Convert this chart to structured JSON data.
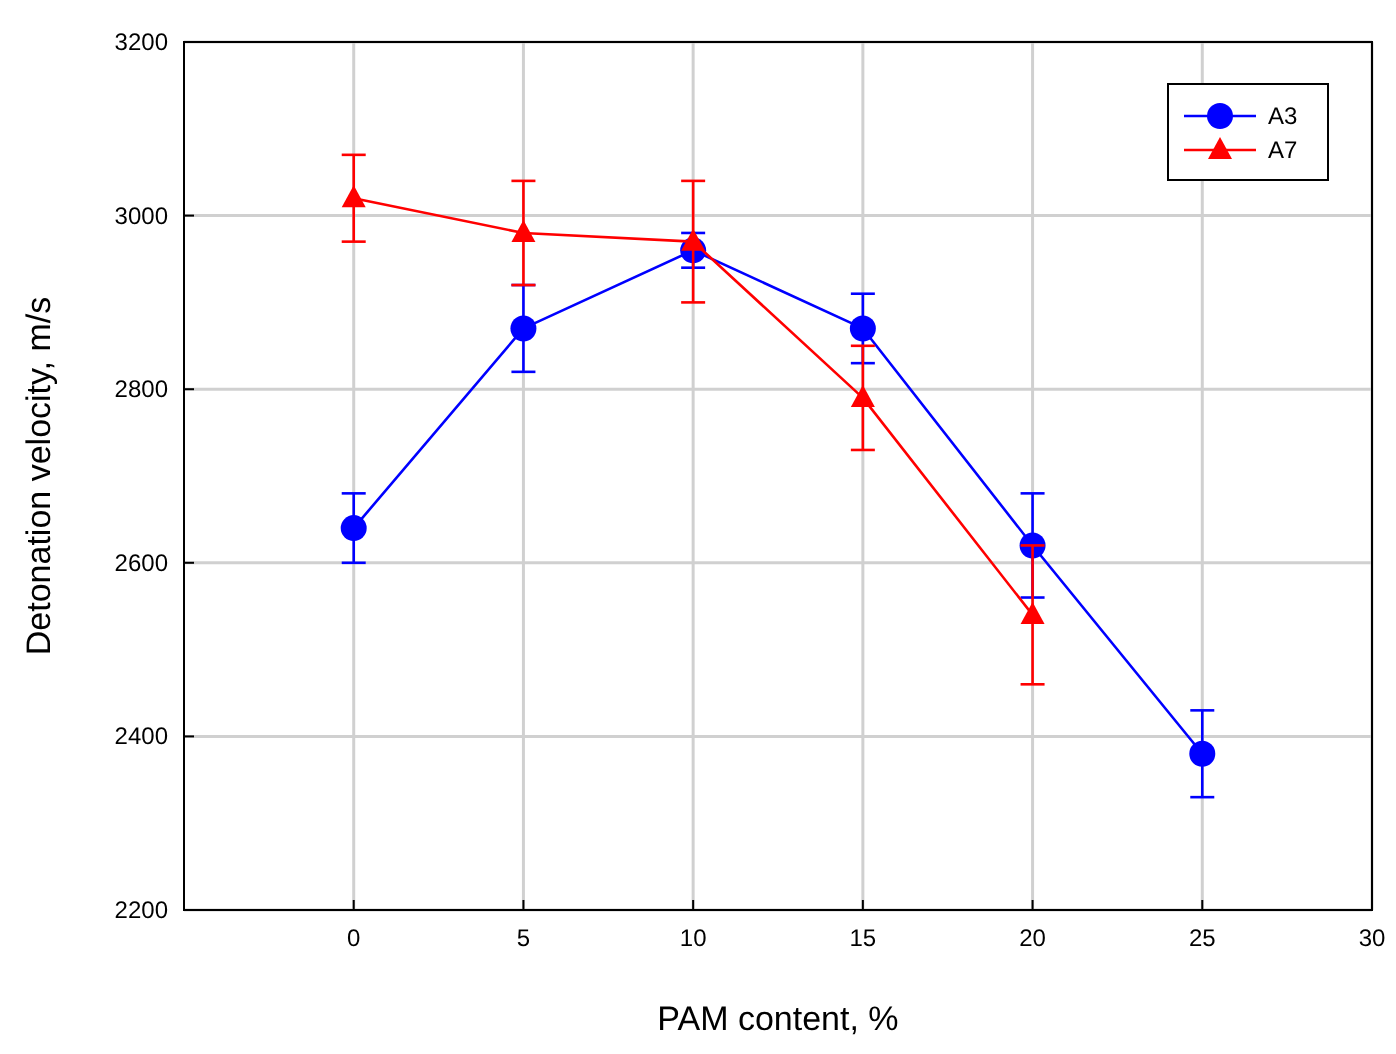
{
  "chart_data": {
    "type": "line",
    "xlabel": "PAM content, %",
    "ylabel": "Detonation velocity, m/s",
    "xlim": [
      -5,
      30
    ],
    "xticks": [
      0,
      5,
      10,
      15,
      20,
      25,
      30
    ],
    "ylim": [
      2200,
      3200
    ],
    "yticks": [
      2200,
      2400,
      2600,
      2800,
      3000,
      3200
    ],
    "grid": true,
    "legend": "top right",
    "series": [
      {
        "name": "A3",
        "color": "#0000ff",
        "marker": "circle",
        "x": [
          0,
          5,
          10,
          15,
          20,
          25
        ],
        "values": [
          2640,
          2870,
          2960,
          2870,
          2620,
          2380
        ],
        "errors": [
          [
            2600,
            2680
          ],
          [
            2820,
            2920
          ],
          [
            2940,
            2980
          ],
          [
            2830,
            2910
          ],
          [
            2560,
            2680
          ],
          [
            2330,
            2430
          ]
        ]
      },
      {
        "name": "A7",
        "color": "#ff0000",
        "marker": "triangle",
        "x": [
          0,
          5,
          10,
          15,
          20
        ],
        "values": [
          3020,
          2980,
          2970,
          2790,
          2540
        ],
        "errors": [
          [
            2970,
            3070
          ],
          [
            2920,
            3040
          ],
          [
            2900,
            3040
          ],
          [
            2730,
            2850
          ],
          [
            2460,
            2620
          ]
        ]
      }
    ]
  }
}
